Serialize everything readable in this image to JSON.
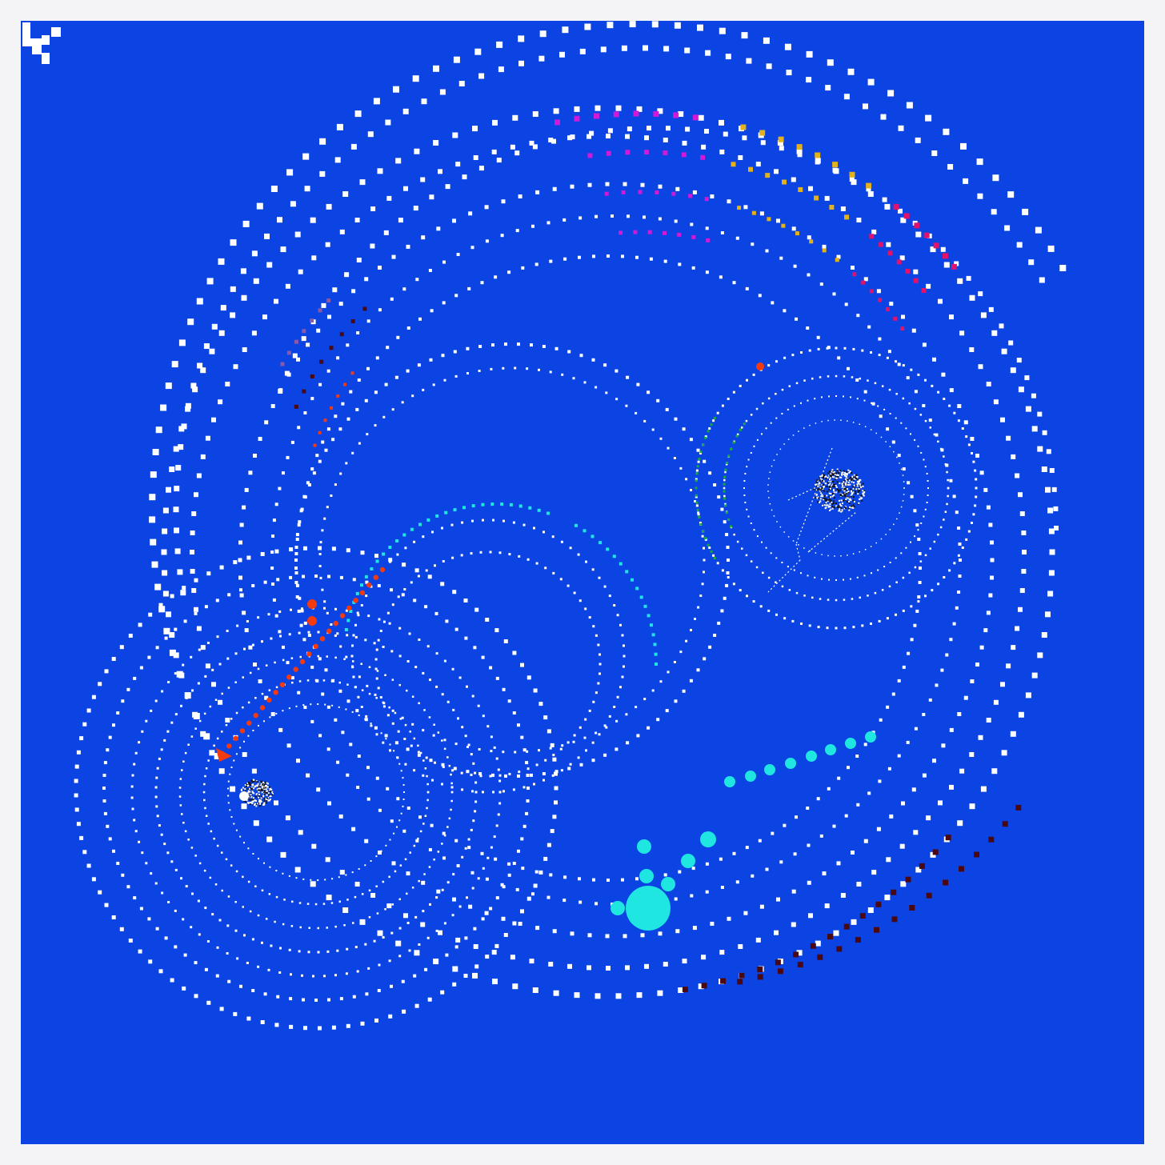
{
  "artwork": {
    "background_color": "#0b44e3",
    "dot_color": "#ffffff",
    "accent_colors": {
      "magenta": "#d01ad8",
      "yellow": "#e2b21c",
      "pink": "#e0126c",
      "dark_red": "#4a0812",
      "orange_red": "#f33b12",
      "cyan": "#1fe6e0",
      "green": "#19a83a",
      "purple": "#8a5aa8"
    }
  },
  "logo": {
    "icon": "brand-mark-icon",
    "color": "#ffffff"
  }
}
